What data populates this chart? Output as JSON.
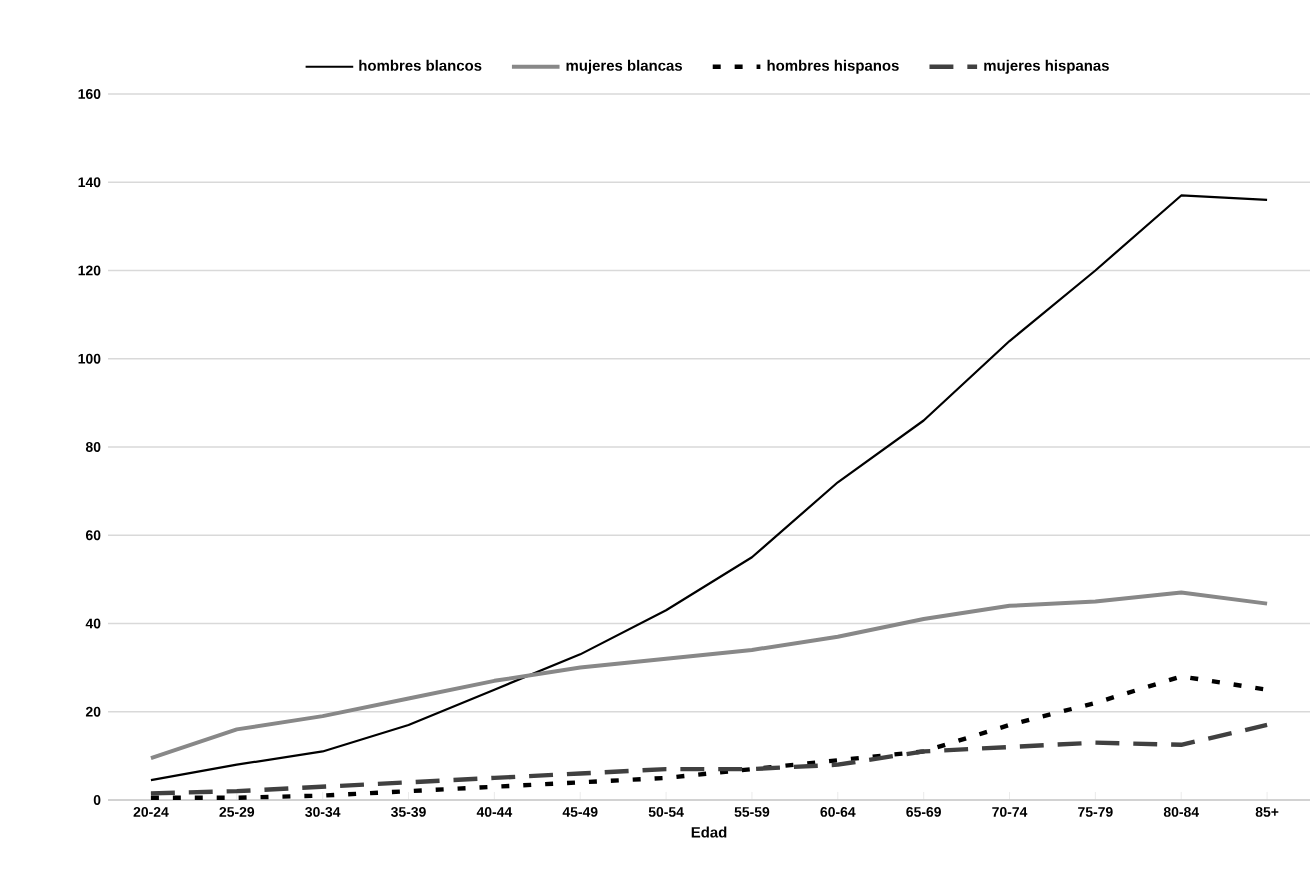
{
  "chart_data": {
    "type": "line",
    "xlabel": "Edad",
    "categories": [
      "20-24",
      "25-29",
      "30-34",
      "35-39",
      "40-44",
      "45-49",
      "50-54",
      "55-59",
      "60-64",
      "65-69",
      "70-74",
      "75-79",
      "80-84",
      "85+"
    ],
    "series": [
      {
        "name": "hombres blancos",
        "color": "#000000",
        "line_style": "solid",
        "values": [
          4.5,
          8,
          11,
          17,
          25,
          33,
          43,
          55,
          72,
          86,
          104,
          120,
          137,
          136
        ]
      },
      {
        "name": "mujeres blancas",
        "color": "#888888",
        "line_style": "solid",
        "values": [
          9.5,
          16,
          19,
          23,
          27,
          30,
          32,
          34,
          37,
          41,
          44,
          45,
          47,
          44.5
        ]
      },
      {
        "name": "hombres hispanos",
        "color": "#000000",
        "line_style": "dotted",
        "values": [
          0.5,
          0.5,
          1,
          2,
          3,
          4,
          5,
          7,
          9,
          11,
          17,
          22,
          28,
          25
        ]
      },
      {
        "name": "mujeres hispanas",
        "color": "#404040",
        "line_style": "dashed",
        "values": [
          1.5,
          2,
          3,
          4,
          5,
          6,
          7,
          7,
          8,
          11,
          12,
          13,
          12.5,
          17
        ]
      }
    ],
    "ylim": [
      0,
      160
    ],
    "yticks": [
      0,
      20,
      40,
      60,
      80,
      100,
      120,
      140,
      160
    ],
    "grid": "y",
    "legend": "top",
    "marker": "none"
  }
}
